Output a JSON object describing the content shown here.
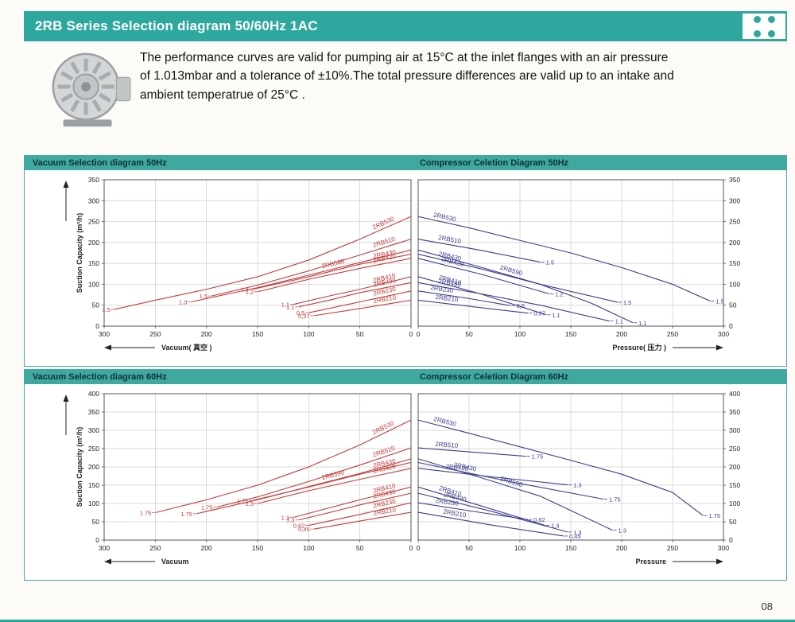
{
  "header": {
    "title": "2RB Series Selection diagram 50/60Hz 1AC",
    "accent": "#2ea79e"
  },
  "intro": {
    "lines": [
      "The performance curves are valid for pumping air at 15°C at the inlet flanges with an air pressure",
      "of 1.013mbar and a tolerance of ±10%.The total pressure differences are valid up to an intake and",
      "ambient temperatrue of 25°C ."
    ]
  },
  "panels": [
    {
      "left_title": "Vacuum Selection diagram 50Hz",
      "right_title": "Compressor Celetion Diagram 50Hz"
    },
    {
      "left_title": "Vacuum Selection diagram 60Hz",
      "right_title": "Compressor Celetion Diagram 60Hz"
    }
  ],
  "page_number": "08",
  "chart_data": [
    {
      "type": "line",
      "title": "Vacuum Selection diagram 50Hz",
      "side": "left",
      "x_reversed": true,
      "xlabel": "Vacuum( 真空 )",
      "ylabel": "Suction Capacity  (m³/h)",
      "xlim": [
        0,
        300
      ],
      "xtick_step": 50,
      "ylim": [
        0,
        350
      ],
      "ytick_step": 50,
      "grid": true,
      "color": "#c23b38",
      "series": [
        {
          "name": "2RB530",
          "power": "1.5",
          "points": [
            [
              290,
              40
            ],
            [
              250,
              62
            ],
            [
              200,
              88
            ],
            [
              150,
              118
            ],
            [
              100,
              158
            ],
            [
              50,
              208
            ],
            [
              0,
              262
            ]
          ]
        },
        {
          "name": "2RB510",
          "power": "1.5",
          "points": [
            [
              195,
              72
            ],
            [
              150,
              98
            ],
            [
              100,
              132
            ],
            [
              50,
              170
            ],
            [
              0,
              208
            ]
          ]
        },
        {
          "name": "2RB590",
          "power": "1.3",
          "label_seg": 2,
          "points": [
            [
              215,
              58
            ],
            [
              150,
              92
            ],
            [
              100,
              122
            ],
            [
              50,
              152
            ],
            [
              0,
              182
            ]
          ]
        },
        {
          "name": "2RB430",
          "power": "1.3",
          "points": [
            [
              155,
              88
            ],
            [
              100,
              118
            ],
            [
              50,
              148
            ],
            [
              0,
              172
            ]
          ]
        },
        {
          "name": "2RB420",
          "power": "1.2",
          "points": [
            [
              150,
              82
            ],
            [
              100,
              112
            ],
            [
              50,
              138
            ],
            [
              0,
              162
            ]
          ]
        },
        {
          "name": "2RB410",
          "power": "1.1",
          "points": [
            [
              115,
              52
            ],
            [
              80,
              72
            ],
            [
              50,
              88
            ],
            [
              0,
              118
            ]
          ]
        },
        {
          "name": "2RB490",
          "power": "1.1",
          "points": [
            [
              110,
              46
            ],
            [
              80,
              62
            ],
            [
              50,
              80
            ],
            [
              0,
              104
            ]
          ]
        },
        {
          "name": "2RB230",
          "power": "0,5",
          "points": [
            [
              100,
              32
            ],
            [
              50,
              58
            ],
            [
              0,
              84
            ]
          ]
        },
        {
          "name": "2RB210",
          "power": "0,37",
          "points": [
            [
              95,
              25
            ],
            [
              50,
              42
            ],
            [
              0,
              62
            ]
          ]
        }
      ]
    },
    {
      "type": "line",
      "title": "Compressor Celetion Diagram 50Hz",
      "side": "right",
      "x_reversed": false,
      "xlabel": "Pressure( 压力 )",
      "xlim": [
        0,
        300
      ],
      "xtick_step": 50,
      "ylim": [
        0,
        350
      ],
      "ytick_step": 50,
      "grid": true,
      "color": "#3a3e8c",
      "series": [
        {
          "name": "2RB530",
          "power": "1.5",
          "points": [
            [
              0,
              262
            ],
            [
              50,
              235
            ],
            [
              100,
              205
            ],
            [
              150,
              175
            ],
            [
              200,
              140
            ],
            [
              250,
              100
            ],
            [
              287,
              60
            ]
          ]
        },
        {
          "name": "2RB510",
          "power": "1.5",
          "points": [
            [
              0,
              208
            ],
            [
              60,
              182
            ],
            [
              120,
              153
            ]
          ]
        },
        {
          "name": "2RB590",
          "power": "1.1",
          "label_seg": 1,
          "points": [
            [
              0,
              182
            ],
            [
              60,
              142
            ],
            [
              120,
              100
            ],
            [
              170,
              55
            ],
            [
              211,
              8
            ]
          ]
        },
        {
          "name": "2RB430",
          "power": "1.5",
          "points": [
            [
              0,
              172
            ],
            [
              60,
              138
            ],
            [
              120,
              100
            ],
            [
              196,
              57
            ]
          ]
        },
        {
          "name": "2RB420",
          "power": "1.2",
          "points": [
            [
              0,
              162
            ],
            [
              65,
              122
            ],
            [
              129,
              77
            ]
          ]
        },
        {
          "name": "2RB410",
          "power": "1.1",
          "points": [
            [
              0,
              118
            ],
            [
              60,
              78
            ],
            [
              126,
              27
            ]
          ]
        },
        {
          "name": "2RB490",
          "power": "1.1",
          "points": [
            [
              0,
              104
            ],
            [
              60,
              78
            ],
            [
              120,
              50
            ],
            [
              188,
              12
            ]
          ]
        },
        {
          "name": "2RB230",
          "power": "0,6",
          "points": [
            [
              0,
              84
            ],
            [
              45,
              68
            ],
            [
              91,
              49
            ]
          ]
        },
        {
          "name": "2RB210",
          "power": "0,37",
          "points": [
            [
              0,
              62
            ],
            [
              55,
              46
            ],
            [
              108,
              31
            ]
          ]
        }
      ]
    },
    {
      "type": "line",
      "title": "Vacuum Selection diagram 60Hz",
      "side": "left",
      "x_reversed": true,
      "xlabel": "Vacuum",
      "ylabel": "Suction Capacity  (m³/h)",
      "xlim": [
        0,
        300
      ],
      "xtick_step": 50,
      "ylim": [
        0,
        400
      ],
      "ytick_step": 50,
      "grid": true,
      "color": "#c23b38",
      "series": [
        {
          "name": "2RB530",
          "power": "1.75",
          "points": [
            [
              250,
              75
            ],
            [
              200,
              110
            ],
            [
              150,
              150
            ],
            [
              100,
              200
            ],
            [
              50,
              260
            ],
            [
              0,
              328
            ]
          ]
        },
        {
          "name": "2RB510",
          "power": "1.75",
          "points": [
            [
              190,
              90
            ],
            [
              150,
              118
            ],
            [
              100,
              160
            ],
            [
              50,
              205
            ],
            [
              0,
              252
            ]
          ]
        },
        {
          "name": "2RB590",
          "power": "1.75",
          "label_seg": 2,
          "points": [
            [
              210,
              72
            ],
            [
              150,
              110
            ],
            [
              100,
              146
            ],
            [
              50,
              182
            ],
            [
              0,
              222
            ]
          ]
        },
        {
          "name": "2RB430",
          "power": "1.75",
          "points": [
            [
              155,
              108
            ],
            [
              100,
              145
            ],
            [
              50,
              180
            ],
            [
              0,
              212
            ]
          ]
        },
        {
          "name": "2RB420",
          "power": "1.3",
          "points": [
            [
              150,
              100
            ],
            [
              100,
              135
            ],
            [
              50,
              166
            ],
            [
              0,
              196
            ]
          ]
        },
        {
          "name": "2RB410",
          "power": "1.3",
          "points": [
            [
              115,
              62
            ],
            [
              80,
              88
            ],
            [
              50,
              110
            ],
            [
              0,
              145
            ]
          ]
        },
        {
          "name": "2RB490",
          "power": "1.3",
          "points": [
            [
              110,
              55
            ],
            [
              80,
              75
            ],
            [
              50,
              96
            ],
            [
              0,
              128
            ]
          ]
        },
        {
          "name": "2RB230",
          "power": "0,62",
          "points": [
            [
              100,
              40
            ],
            [
              50,
              70
            ],
            [
              0,
              102
            ]
          ]
        },
        {
          "name": "2RB210",
          "power": "0,45",
          "points": [
            [
              95,
              30
            ],
            [
              50,
              52
            ],
            [
              0,
              76
            ]
          ]
        }
      ]
    },
    {
      "type": "line",
      "title": "Compressor Celetion Diagram 60Hz",
      "side": "right",
      "x_reversed": false,
      "xlabel": "Pressure",
      "xlim": [
        0,
        300
      ],
      "xtick_step": 50,
      "ylim": [
        0,
        400
      ],
      "ytick_step": 50,
      "grid": true,
      "color": "#3a3e8c",
      "series": [
        {
          "name": "2RB530",
          "power": "1.75",
          "points": [
            [
              0,
              328
            ],
            [
              50,
              292
            ],
            [
              100,
              255
            ],
            [
              150,
              218
            ],
            [
              200,
              180
            ],
            [
              250,
              130
            ],
            [
              280,
              67
            ]
          ]
        },
        {
          "name": "2RB510",
          "power": "1.75",
          "points": [
            [
              0,
              252
            ],
            [
              55,
              240
            ],
            [
              106,
              229
            ]
          ]
        },
        {
          "name": "2RB590",
          "power": "1.3",
          "label_seg": 1,
          "points": [
            [
              0,
              222
            ],
            [
              60,
              172
            ],
            [
              120,
              120
            ],
            [
              191,
              27
            ]
          ]
        },
        {
          "name": "2RB430",
          "power": "1.75",
          "points": [
            [
              0,
              212
            ],
            [
              90,
              160
            ],
            [
              182,
              112
            ]
          ]
        },
        {
          "name": "2RB420",
          "power": "1.3",
          "points": [
            [
              0,
              196
            ],
            [
              75,
              172
            ],
            [
              147,
              151
            ]
          ]
        },
        {
          "name": "2RB410",
          "power": "1.3",
          "points": [
            [
              0,
              145
            ],
            [
              60,
              95
            ],
            [
              125,
              40
            ]
          ]
        },
        {
          "name": "2RB490",
          "power": "1.3",
          "points": [
            [
              0,
              128
            ],
            [
              70,
              80
            ],
            [
              147,
              22
            ]
          ]
        },
        {
          "name": "2RB230",
          "power": "0,62",
          "points": [
            [
              0,
              102
            ],
            [
              55,
              78
            ],
            [
              108,
              56
            ]
          ]
        },
        {
          "name": "2RB210",
          "power": "0,45",
          "points": [
            [
              0,
              76
            ],
            [
              70,
              42
            ],
            [
              143,
              11
            ]
          ]
        }
      ]
    }
  ]
}
